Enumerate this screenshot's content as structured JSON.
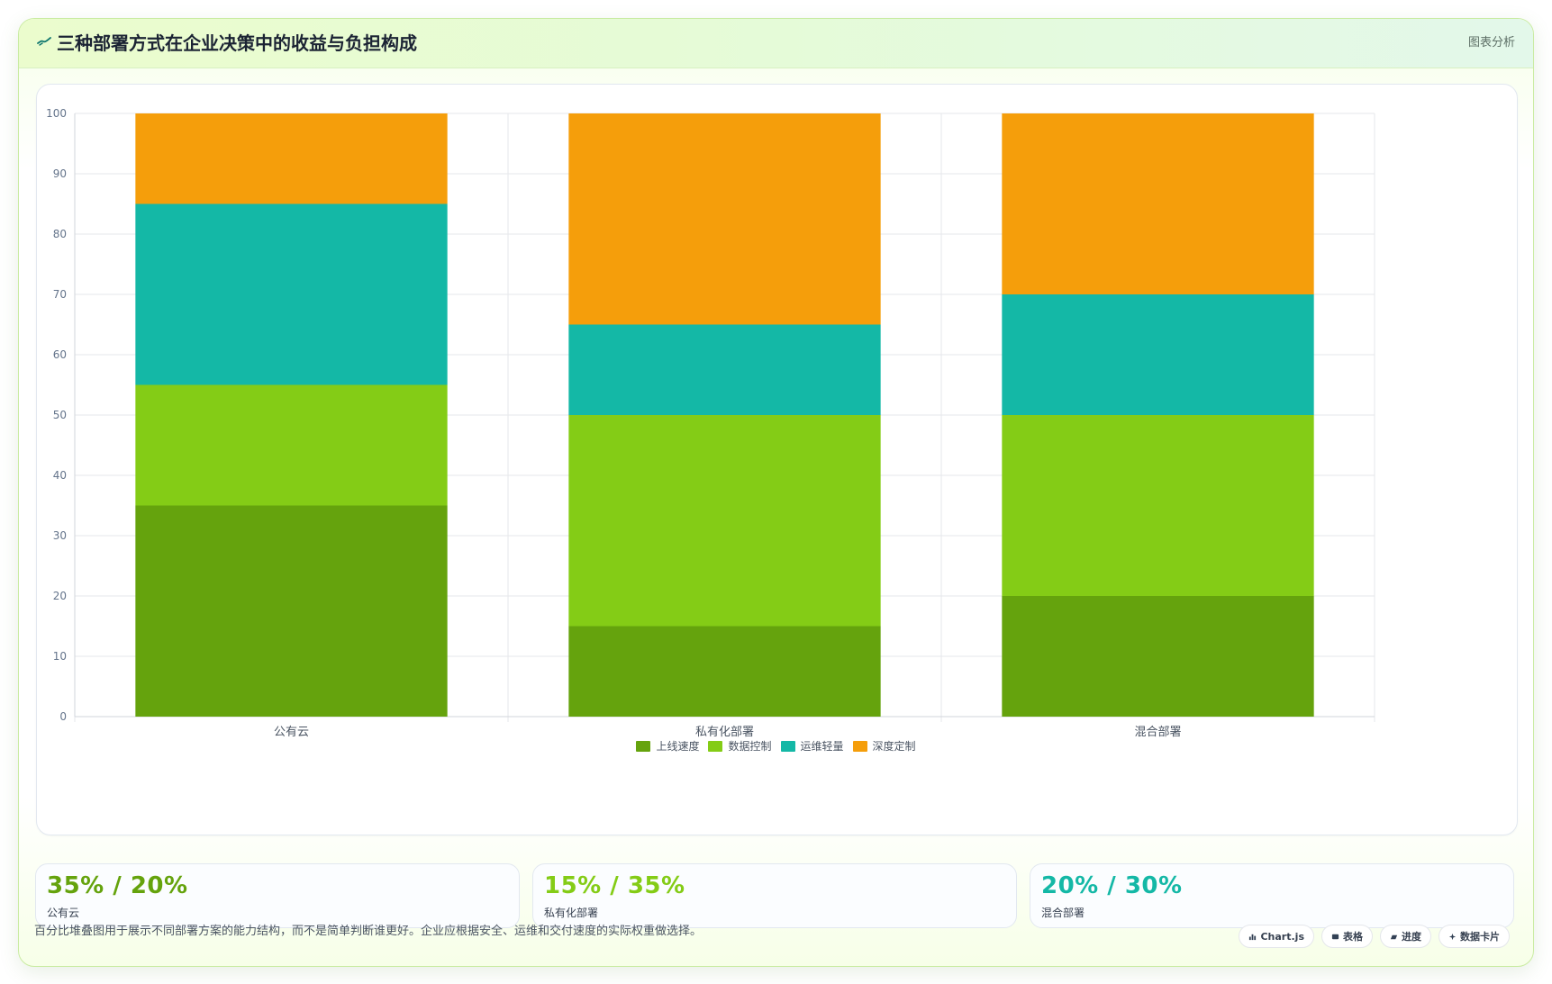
{
  "header": {
    "title": "三种部署方式在企业决策中的收益与负担构成",
    "right_label": "图表分析",
    "icon": "trend-icon"
  },
  "chart_data": {
    "type": "bar",
    "stacked": true,
    "categories": [
      "公有云",
      "私有化部署",
      "混合部署"
    ],
    "series": [
      {
        "name": "上线速度",
        "values": [
          35,
          15,
          20
        ],
        "color": "#65a30d"
      },
      {
        "name": "数据控制",
        "values": [
          20,
          35,
          30
        ],
        "color": "#84cc16"
      },
      {
        "name": "运维轻量",
        "values": [
          30,
          15,
          20
        ],
        "color": "#14b8a6"
      },
      {
        "name": "深度定制",
        "values": [
          15,
          35,
          30
        ],
        "color": "#f59e0b"
      }
    ],
    "ylim": [
      0,
      100
    ],
    "yticks": [
      "0",
      "10",
      "20",
      "30",
      "40",
      "50",
      "60",
      "70",
      "80",
      "90",
      "100"
    ],
    "grid": true,
    "legend_position": "bottom"
  },
  "stats": [
    {
      "value": "35% / 20%",
      "label": "公有云",
      "color": "#65a30d"
    },
    {
      "value": "15% / 35%",
      "label": "私有化部署",
      "color": "#84cc16"
    },
    {
      "value": "20% / 30%",
      "label": "混合部署",
      "color": "#14b8a6"
    }
  ],
  "footer": {
    "note": "百分比堆叠图用于展示不同部署方案的能力结构，而不是简单判断谁更好。企业应根据安全、运维和交付速度的实际权重做选择。",
    "tags": [
      {
        "label": "Chart.js",
        "icon": "chart-icon"
      },
      {
        "label": "表格",
        "icon": "table-icon"
      },
      {
        "label": "进度",
        "icon": "progress-icon"
      },
      {
        "label": "数据卡片",
        "icon": "sparkle-icon"
      }
    ]
  }
}
